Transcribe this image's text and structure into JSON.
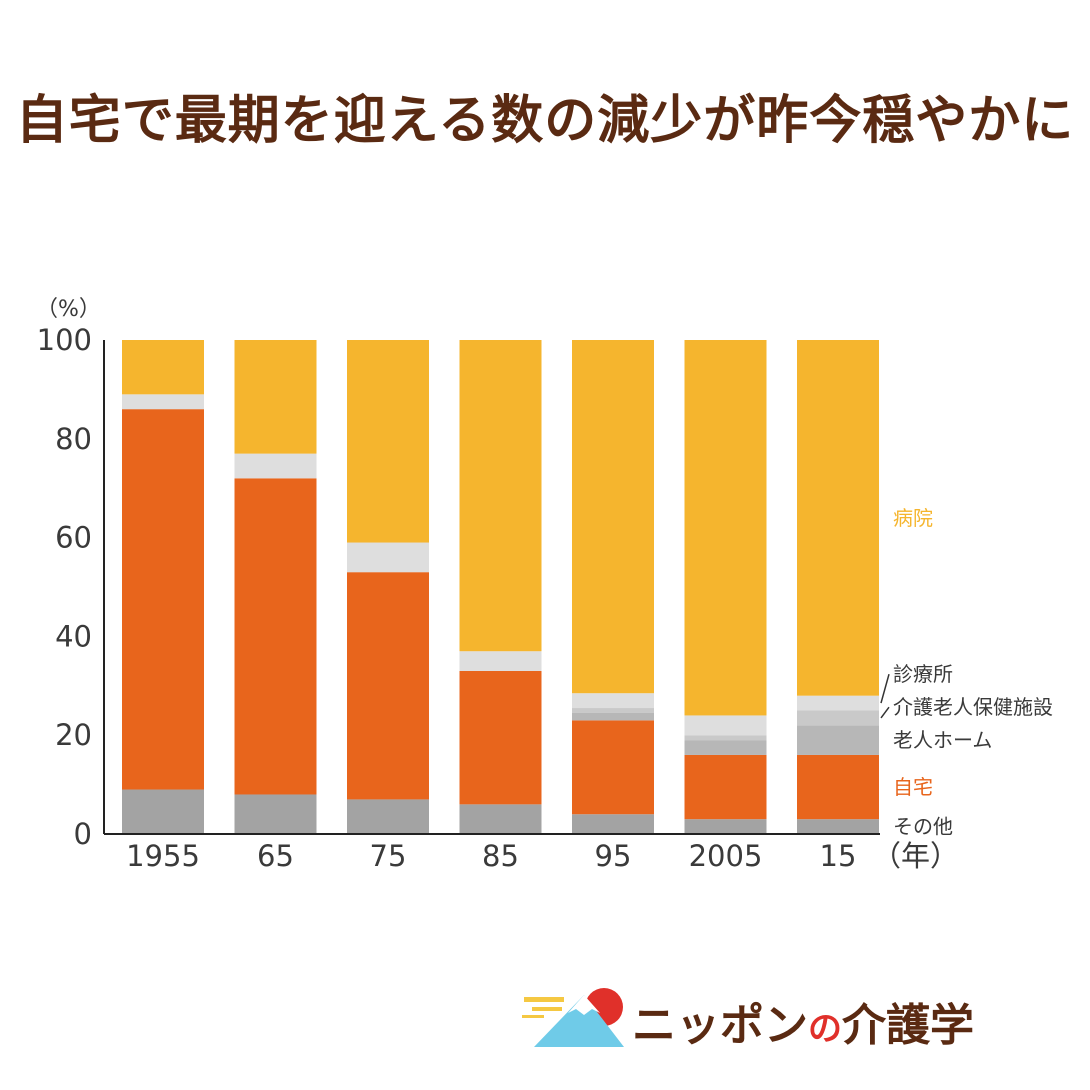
{
  "title": "自宅で最期を迎える数の減少が昨今穏やかに",
  "logo": {
    "part1": "ニッポン",
    "part2": "の",
    "part3": "介護学"
  },
  "chart_data": {
    "type": "bar",
    "stacked": true,
    "y_unit_label": "（%）",
    "x_unit_label": "（年）",
    "categories": [
      "1955",
      "65",
      "75",
      "85",
      "95",
      "2005",
      "15"
    ],
    "ylim": [
      0,
      100
    ],
    "yticks": [
      0,
      20,
      40,
      60,
      80,
      100
    ],
    "series": [
      {
        "name": "その他",
        "color": "#a3a3a3",
        "values": [
          9,
          8,
          7,
          6,
          4,
          3,
          3
        ]
      },
      {
        "name": "自宅",
        "color": "#e8651c",
        "values": [
          77,
          64,
          46,
          27,
          19,
          13,
          13
        ]
      },
      {
        "name": "老人ホーム",
        "color": "#b7b7b7",
        "values": [
          0,
          0,
          0,
          0,
          1.5,
          3,
          6
        ]
      },
      {
        "name": "介護老人保健施設",
        "color": "#c9c9c9",
        "values": [
          0,
          0,
          0,
          0,
          1,
          1,
          3
        ]
      },
      {
        "name": "診療所",
        "color": "#dedede",
        "values": [
          3,
          5,
          6,
          4,
          3,
          4,
          3
        ]
      },
      {
        "name": "病院",
        "color": "#f5b52e",
        "values": [
          11,
          23,
          41,
          63,
          71.5,
          76,
          72
        ]
      }
    ],
    "label_colors": {
      "病院": "#f5b52e",
      "診療所": "#3a3a3a",
      "介護老人保健施設": "#3a3a3a",
      "老人ホーム": "#3a3a3a",
      "自宅": "#e8651c",
      "その他": "#3a3a3a"
    }
  }
}
